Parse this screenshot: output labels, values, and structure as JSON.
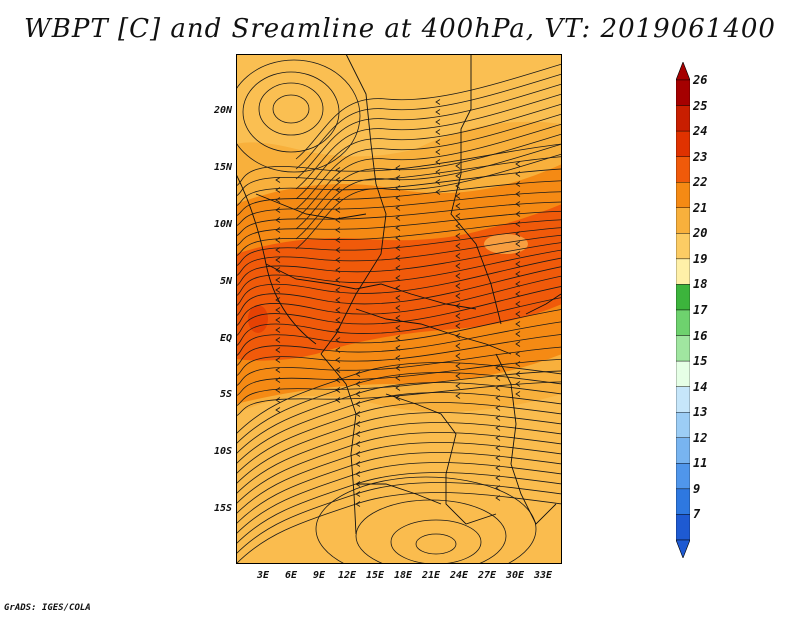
{
  "title": "WBPT [C] and Sreamline at 400hPa, VT: 2019061400",
  "credit": "GrADS: IGES/COLA",
  "lat_labels": [
    "20N",
    "15N",
    "10N",
    "5N",
    "EQ",
    "5S",
    "10S",
    "15S"
  ],
  "lon_labels": [
    "3E",
    "6E",
    "9E",
    "12E",
    "15E",
    "18E",
    "21E",
    "24E",
    "27E",
    "30E",
    "33E"
  ],
  "colorbar": {
    "labels": [
      "26",
      "25",
      "24",
      "23",
      "22",
      "21",
      "20",
      "19",
      "18",
      "17",
      "16",
      "15",
      "14",
      "13",
      "12",
      "11",
      "9",
      "7"
    ],
    "colors": [
      "#a50000",
      "#c81e00",
      "#e03200",
      "#f05a0a",
      "#f58a14",
      "#f8b03c",
      "#fccc64",
      "#fff0a8",
      "#3cb43c",
      "#6ed26e",
      "#a0e6a0",
      "#e6ffe6",
      "#c6e6fa",
      "#9ccdf5",
      "#78b4f0",
      "#5096eb",
      "#2e78e0",
      "#1e5ad2"
    ]
  },
  "map_colors": {
    "background": "#f8b03c",
    "band_warm": "#f58a14",
    "band_hot": "#f05a0a",
    "cool_patch": "#fccc64"
  }
}
